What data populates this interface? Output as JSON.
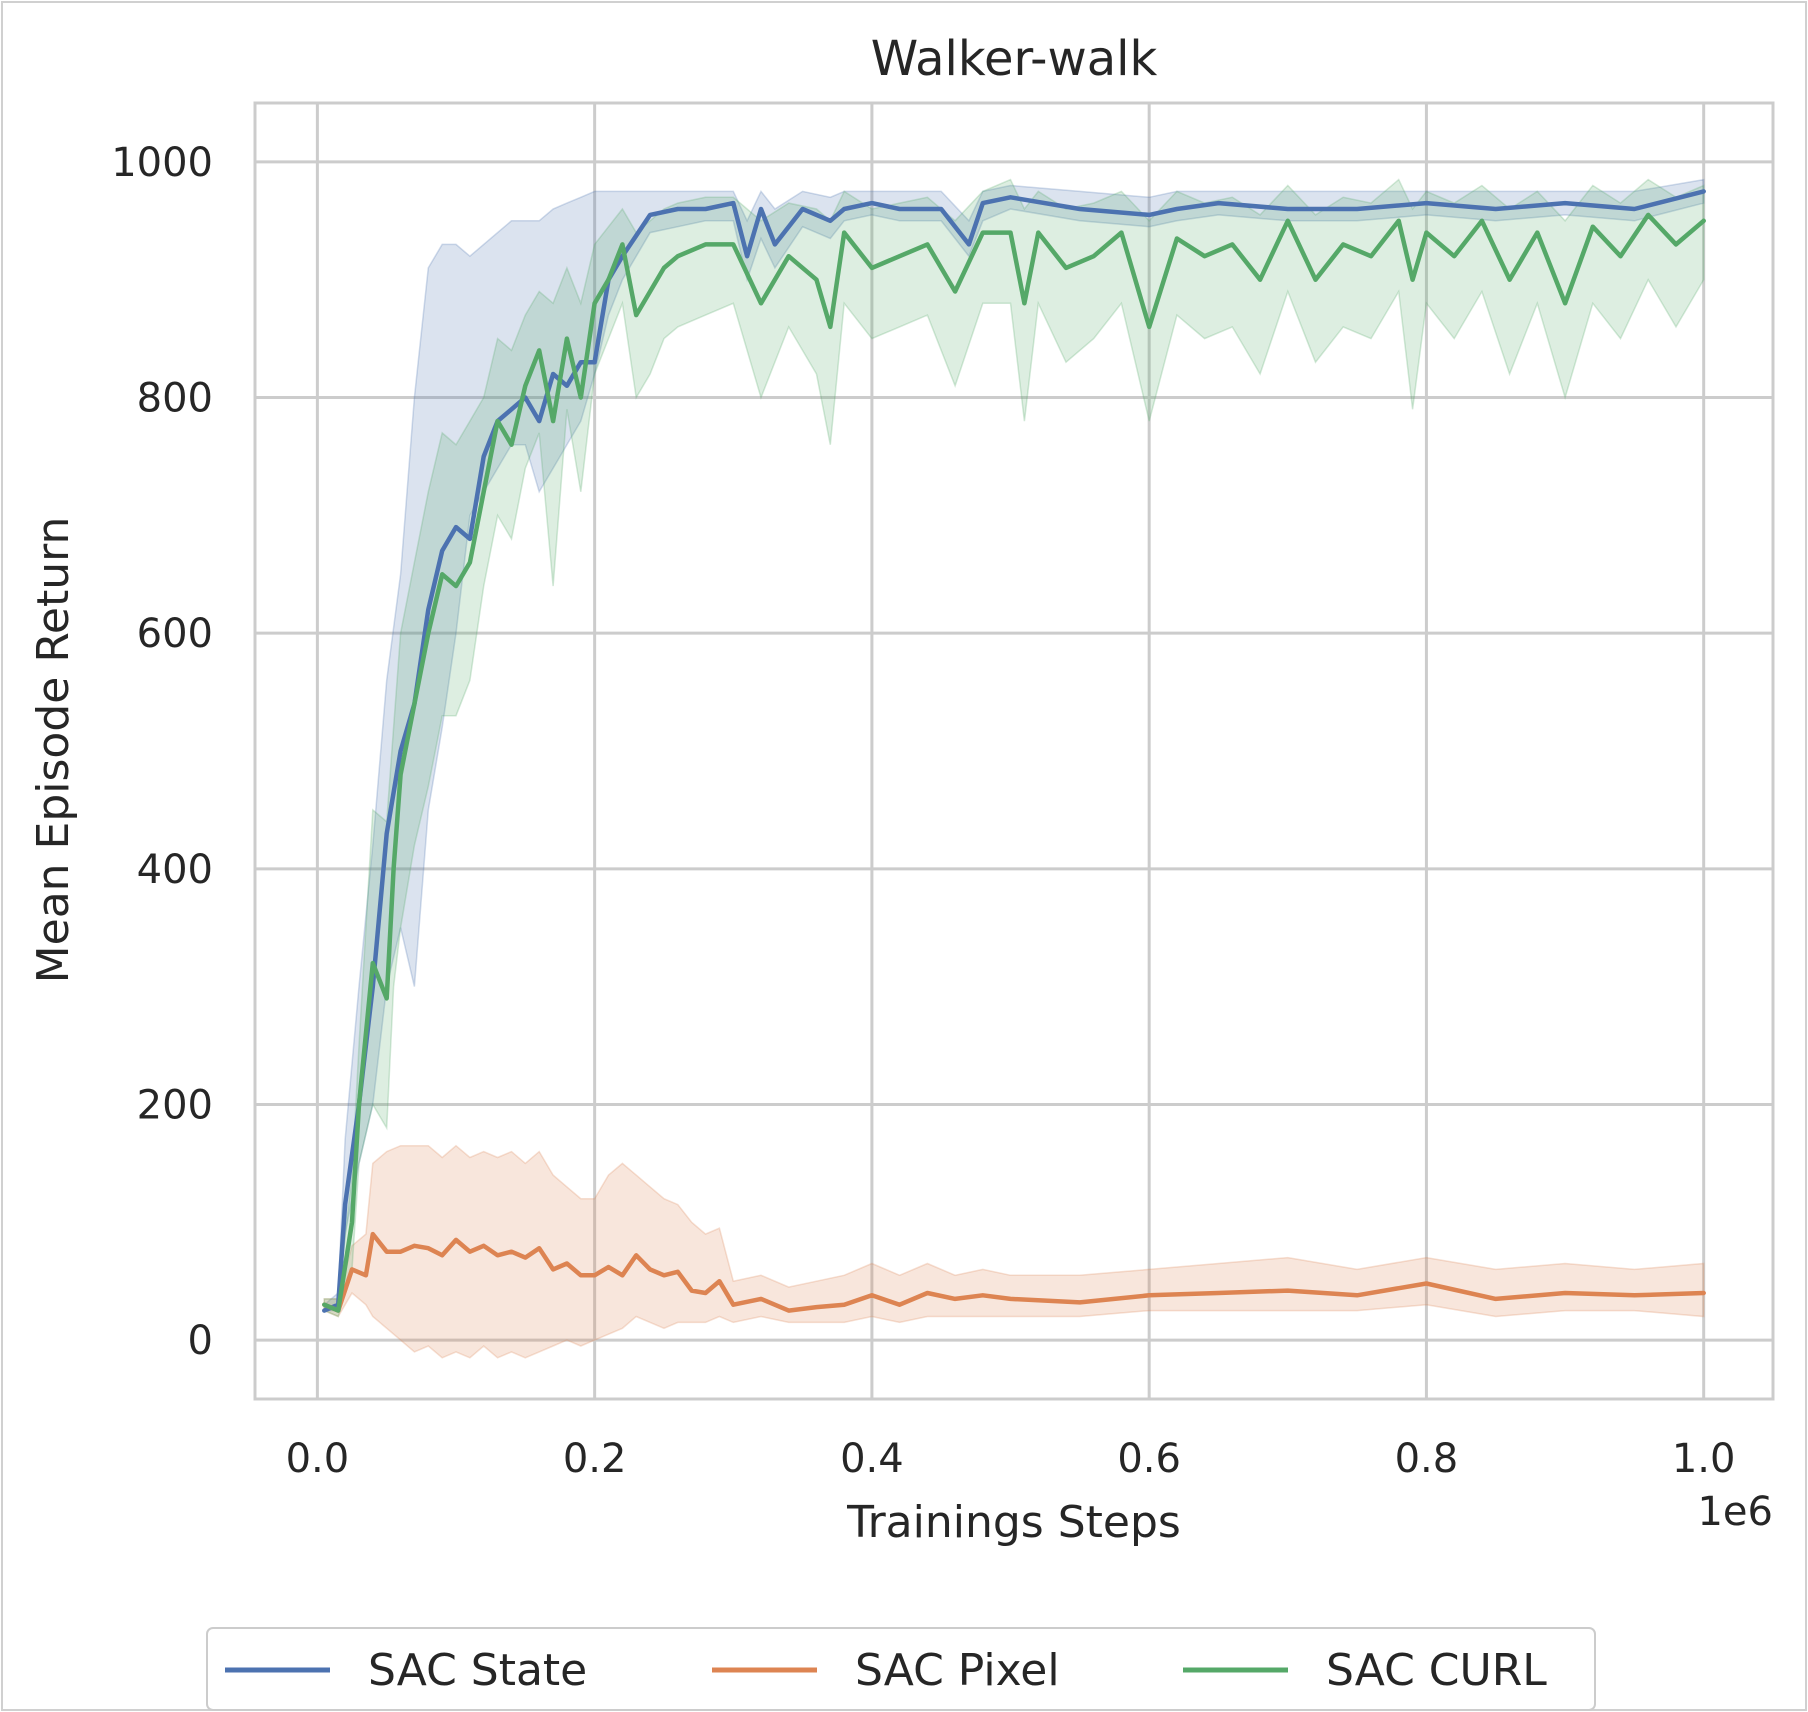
{
  "chart_data": {
    "type": "line",
    "title": "Walker-walk",
    "xlabel": "Trainings Steps",
    "ylabel": "Mean Episode Return",
    "x_multiplier_label": "1e6",
    "xlim": [
      -0.045,
      1.05
    ],
    "ylim": [
      -50,
      1050
    ],
    "xticks": [
      0.0,
      0.2,
      0.4,
      0.6,
      0.8,
      1.0
    ],
    "xtick_labels": [
      "0.0",
      "0.2",
      "0.4",
      "0.6",
      "0.8",
      "1.0"
    ],
    "yticks": [
      0,
      200,
      400,
      600,
      800,
      1000
    ],
    "ytick_labels": [
      "0",
      "200",
      "400",
      "600",
      "800",
      "1000"
    ],
    "grid": true,
    "legend_position": "bottom-center",
    "series": [
      {
        "name": "SAC State",
        "color": "#4c72b0",
        "x": [
          0.005,
          0.015,
          0.02,
          0.03,
          0.04,
          0.05,
          0.06,
          0.07,
          0.08,
          0.09,
          0.1,
          0.11,
          0.12,
          0.13,
          0.14,
          0.15,
          0.16,
          0.17,
          0.18,
          0.19,
          0.2,
          0.21,
          0.22,
          0.24,
          0.26,
          0.28,
          0.3,
          0.31,
          0.32,
          0.33,
          0.35,
          0.37,
          0.38,
          0.4,
          0.42,
          0.45,
          0.47,
          0.48,
          0.5,
          0.55,
          0.6,
          0.62,
          0.65,
          0.7,
          0.75,
          0.8,
          0.85,
          0.9,
          0.95,
          1.0
        ],
        "y": [
          25,
          30,
          115,
          200,
          300,
          430,
          500,
          540,
          620,
          670,
          690,
          680,
          750,
          780,
          790,
          800,
          780,
          820,
          810,
          830,
          830,
          900,
          920,
          955,
          960,
          960,
          965,
          920,
          960,
          930,
          960,
          950,
          960,
          965,
          960,
          960,
          930,
          965,
          970,
          960,
          955,
          960,
          965,
          960,
          960,
          965,
          960,
          965,
          960,
          975
        ],
        "lower": [
          25,
          25,
          90,
          150,
          200,
          300,
          350,
          300,
          450,
          520,
          600,
          700,
          720,
          740,
          760,
          760,
          720,
          740,
          760,
          780,
          820,
          870,
          900,
          940,
          945,
          950,
          950,
          900,
          935,
          910,
          945,
          935,
          950,
          955,
          950,
          950,
          920,
          950,
          960,
          950,
          945,
          950,
          955,
          950,
          950,
          955,
          950,
          955,
          950,
          965
        ],
        "upper": [
          30,
          40,
          170,
          300,
          420,
          560,
          650,
          800,
          910,
          930,
          930,
          920,
          930,
          940,
          950,
          950,
          950,
          960,
          965,
          970,
          975,
          975,
          975,
          975,
          975,
          975,
          975,
          950,
          975,
          960,
          975,
          970,
          975,
          975,
          975,
          975,
          950,
          975,
          980,
          975,
          970,
          975,
          975,
          975,
          975,
          975,
          975,
          975,
          975,
          985
        ]
      },
      {
        "name": "SAC Pixel",
        "color": "#dd8452",
        "x": [
          0.005,
          0.015,
          0.025,
          0.035,
          0.04,
          0.05,
          0.06,
          0.07,
          0.08,
          0.09,
          0.1,
          0.11,
          0.12,
          0.13,
          0.14,
          0.15,
          0.16,
          0.17,
          0.18,
          0.19,
          0.2,
          0.21,
          0.22,
          0.23,
          0.24,
          0.25,
          0.26,
          0.27,
          0.28,
          0.29,
          0.3,
          0.32,
          0.34,
          0.36,
          0.38,
          0.4,
          0.42,
          0.44,
          0.46,
          0.48,
          0.5,
          0.55,
          0.6,
          0.65,
          0.7,
          0.75,
          0.8,
          0.85,
          0.9,
          0.95,
          1.0
        ],
        "y": [
          30,
          25,
          60,
          55,
          90,
          75,
          75,
          80,
          78,
          72,
          85,
          75,
          80,
          72,
          75,
          70,
          78,
          60,
          65,
          55,
          55,
          62,
          55,
          72,
          60,
          55,
          58,
          42,
          40,
          50,
          30,
          35,
          25,
          28,
          30,
          38,
          30,
          40,
          35,
          38,
          35,
          32,
          38,
          40,
          42,
          38,
          48,
          35,
          40,
          38,
          40
        ],
        "lower": [
          25,
          20,
          40,
          30,
          20,
          10,
          0,
          -10,
          -5,
          -15,
          -10,
          -15,
          -5,
          -15,
          -10,
          -15,
          -10,
          -5,
          0,
          -5,
          0,
          5,
          10,
          20,
          15,
          10,
          15,
          15,
          15,
          20,
          15,
          20,
          15,
          15,
          15,
          20,
          15,
          20,
          20,
          20,
          20,
          20,
          25,
          25,
          25,
          25,
          30,
          20,
          25,
          25,
          20
        ],
        "upper": [
          35,
          35,
          80,
          90,
          150,
          160,
          165,
          165,
          165,
          155,
          165,
          155,
          160,
          155,
          160,
          150,
          160,
          140,
          130,
          120,
          120,
          140,
          150,
          140,
          130,
          120,
          115,
          100,
          90,
          95,
          50,
          55,
          45,
          50,
          55,
          65,
          55,
          65,
          55,
          60,
          55,
          55,
          60,
          65,
          70,
          60,
          70,
          60,
          65,
          60,
          65
        ]
      },
      {
        "name": "SAC CURL",
        "color": "#55a868",
        "x": [
          0.005,
          0.015,
          0.025,
          0.03,
          0.04,
          0.05,
          0.055,
          0.06,
          0.07,
          0.08,
          0.09,
          0.1,
          0.11,
          0.12,
          0.13,
          0.14,
          0.15,
          0.16,
          0.17,
          0.18,
          0.19,
          0.2,
          0.21,
          0.22,
          0.23,
          0.24,
          0.25,
          0.26,
          0.28,
          0.3,
          0.32,
          0.34,
          0.36,
          0.37,
          0.38,
          0.4,
          0.42,
          0.44,
          0.46,
          0.48,
          0.5,
          0.51,
          0.52,
          0.54,
          0.56,
          0.58,
          0.6,
          0.62,
          0.64,
          0.66,
          0.68,
          0.7,
          0.72,
          0.74,
          0.76,
          0.78,
          0.79,
          0.8,
          0.82,
          0.84,
          0.86,
          0.88,
          0.9,
          0.92,
          0.94,
          0.96,
          0.98,
          1.0
        ],
        "y": [
          30,
          25,
          100,
          200,
          320,
          290,
          400,
          480,
          540,
          600,
          650,
          640,
          660,
          720,
          780,
          760,
          810,
          840,
          780,
          850,
          800,
          880,
          900,
          930,
          870,
          890,
          910,
          920,
          930,
          930,
          880,
          920,
          900,
          860,
          940,
          910,
          920,
          930,
          890,
          940,
          940,
          880,
          940,
          910,
          920,
          940,
          860,
          935,
          920,
          930,
          900,
          950,
          900,
          930,
          920,
          950,
          900,
          940,
          920,
          950,
          900,
          940,
          880,
          945,
          920,
          955,
          930,
          950
        ],
        "lower": [
          25,
          20,
          60,
          150,
          200,
          180,
          300,
          350,
          420,
          470,
          530,
          530,
          560,
          640,
          700,
          680,
          740,
          770,
          640,
          790,
          720,
          820,
          850,
          880,
          800,
          820,
          850,
          860,
          870,
          880,
          800,
          860,
          820,
          760,
          880,
          850,
          860,
          870,
          810,
          880,
          880,
          780,
          880,
          830,
          850,
          880,
          780,
          870,
          850,
          860,
          820,
          890,
          830,
          860,
          850,
          890,
          790,
          880,
          850,
          890,
          820,
          880,
          800,
          880,
          850,
          900,
          860,
          900
        ],
        "upper": [
          35,
          35,
          140,
          250,
          450,
          440,
          520,
          600,
          660,
          720,
          770,
          760,
          780,
          800,
          850,
          840,
          870,
          890,
          880,
          910,
          880,
          930,
          945,
          960,
          940,
          950,
          960,
          965,
          970,
          970,
          950,
          965,
          960,
          950,
          975,
          960,
          965,
          970,
          950,
          975,
          985,
          960,
          975,
          960,
          965,
          975,
          950,
          975,
          965,
          970,
          955,
          980,
          955,
          970,
          965,
          985,
          960,
          975,
          965,
          980,
          960,
          975,
          950,
          980,
          965,
          985,
          970,
          980
        ]
      }
    ]
  }
}
